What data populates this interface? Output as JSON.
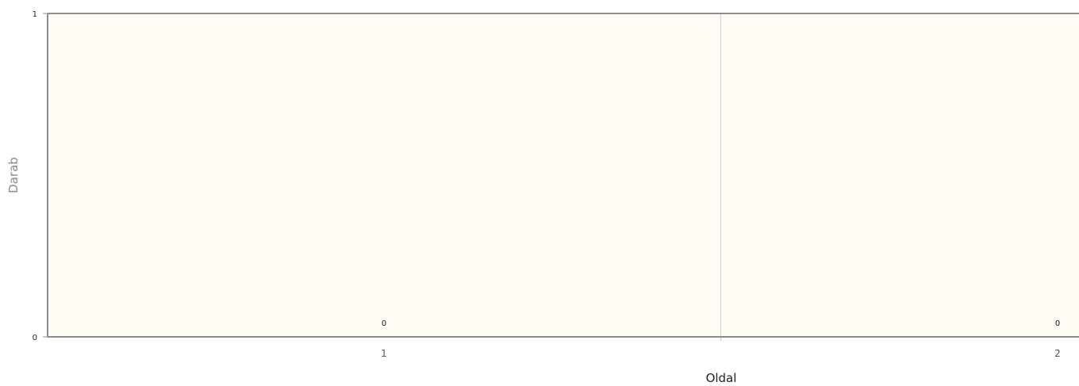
{
  "chart_data": {
    "type": "bar",
    "categories": [
      "1",
      "2"
    ],
    "values": [
      0,
      0
    ],
    "data_labels": [
      "0",
      "0"
    ],
    "xlabel": "Oldal",
    "ylabel": "Darab",
    "ylim": [
      0,
      1
    ],
    "y_ticks": [
      "0",
      "1"
    ],
    "grid": "vertical-between-categories",
    "colors": {
      "plot_background": "#fefcf4",
      "axis": "#8c8c8c",
      "grid": "#cfcfcf"
    }
  }
}
